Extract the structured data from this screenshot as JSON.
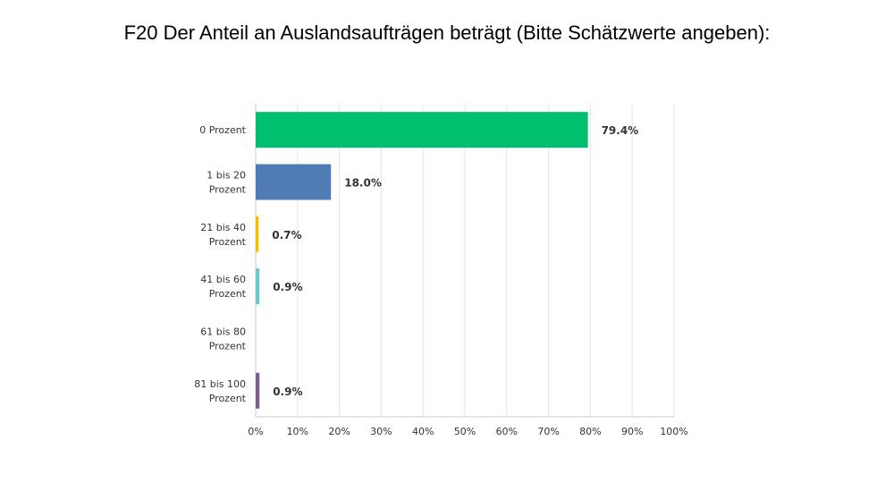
{
  "chart_data": {
    "type": "bar",
    "orientation": "horizontal",
    "title": "F20 Der Anteil an Auslandsaufträgen beträgt (Bitte Schätzwerte angeben):",
    "categories": [
      [
        "0 Prozent"
      ],
      [
        "1 bis 20",
        "Prozent"
      ],
      [
        "21 bis 40",
        "Prozent"
      ],
      [
        "41 bis 60",
        "Prozent"
      ],
      [
        "61 bis 80",
        "Prozent"
      ],
      [
        "81 bis 100",
        "Prozent"
      ]
    ],
    "values": [
      79.4,
      18.0,
      0.7,
      0.9,
      0.0,
      0.9
    ],
    "value_labels": [
      "79.4%",
      "18.0%",
      "0.7%",
      "0.9%",
      "",
      "0.9%"
    ],
    "colors": [
      "#00bf6f",
      "#507cb6",
      "#f9be00",
      "#6bc8cd",
      "#ff8b4f",
      "#7d5e90"
    ],
    "xlim": [
      0,
      100
    ],
    "xticks": [
      "0%",
      "10%",
      "20%",
      "30%",
      "40%",
      "50%",
      "60%",
      "70%",
      "80%",
      "90%",
      "100%"
    ],
    "grid": true,
    "legend": "none"
  }
}
